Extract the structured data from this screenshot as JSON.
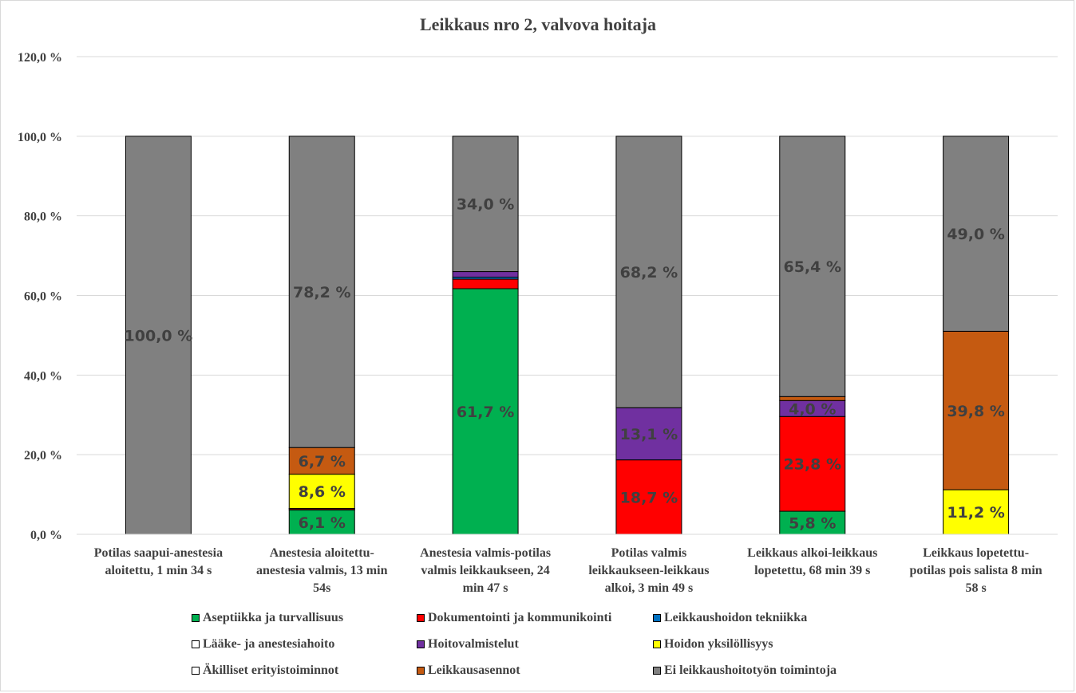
{
  "chart_data": {
    "type": "bar",
    "stacked": true,
    "title": "Leikkaus nro 2, valvova hoitaja",
    "ylim": [
      0,
      120
    ],
    "yticks": [
      "0,0 %",
      "20,0 %",
      "40,0 %",
      "60,0 %",
      "80,0 %",
      "100,0 %",
      "120,0 %"
    ],
    "ytick_values": [
      0,
      20,
      40,
      60,
      80,
      100,
      120
    ],
    "grid": true,
    "legend_position": "bottom",
    "categories": [
      [
        "Potilas saapui-anestesia",
        "aloitettu, 1 min 34 s"
      ],
      [
        "Anestesia aloitettu-",
        "anestesia valmis, 13 min",
        "54s"
      ],
      [
        "Anestesia valmis-potilas",
        "valmis leikkaukseen, 24",
        "min 47 s"
      ],
      [
        "Potilas valmis",
        "leikkaukseen-leikkaus",
        "alkoi, 3 min 49 s"
      ],
      [
        "Leikkaus alkoi-leikkaus",
        "lopetettu, 68 min 39 s"
      ],
      [
        "Leikkaus lopetettu-",
        "potilas pois salista 8 min",
        "58 s"
      ]
    ],
    "series": [
      {
        "name": "Aseptiikka ja turvallisuus",
        "color": "#00b050",
        "values": [
          0,
          6.1,
          61.7,
          0,
          5.8,
          0
        ],
        "labels": [
          "",
          "6,1 %",
          "61,7 %",
          "",
          "5,8 %",
          ""
        ]
      },
      {
        "name": "Dokumentointi ja kommunikointi",
        "color": "#ff0000",
        "values": [
          0,
          0.3,
          2.4,
          18.7,
          23.8,
          0
        ],
        "labels": [
          "",
          "",
          "",
          "18,7 %",
          "23,8 %",
          ""
        ]
      },
      {
        "name": "Leikkaushoidon tekniikka",
        "color": "#0070c0",
        "values": [
          0,
          0,
          0.5,
          0,
          0,
          0
        ],
        "labels": [
          "",
          "",
          "",
          "",
          "",
          ""
        ]
      },
      {
        "name": "Lääke- ja anestesiahoito",
        "color": "#ffffff",
        "values": [
          0,
          0,
          0,
          0,
          0,
          0
        ],
        "labels": [
          "",
          "",
          "",
          "",
          "",
          ""
        ]
      },
      {
        "name": "Hoitovalmistelut",
        "color": "#7030a0",
        "values": [
          0,
          0.1,
          1.4,
          13.1,
          4.0,
          0
        ],
        "labels": [
          "",
          "",
          "",
          "13,1 %",
          "4,0 %",
          ""
        ]
      },
      {
        "name": "Hoidon yksilöllisyys",
        "color": "#ffff00",
        "values": [
          0,
          8.6,
          0,
          0,
          0,
          11.2
        ],
        "labels": [
          "",
          "8,6 %",
          "",
          "",
          "",
          "11,2 %"
        ]
      },
      {
        "name": "Äkilliset erityistoiminnot",
        "color": "#ffffff",
        "values": [
          0,
          0,
          0,
          0,
          0,
          0
        ],
        "labels": [
          "",
          "",
          "",
          "",
          "",
          ""
        ]
      },
      {
        "name": "Leikkausasennot",
        "color": "#c55a11",
        "values": [
          0,
          6.7,
          0,
          0,
          1.0,
          39.8
        ],
        "labels": [
          "",
          "6,7 %",
          "",
          "",
          "",
          "39,8 %"
        ]
      },
      {
        "name": "Ei leikkaushoitotyön toimintoja",
        "color": "#808080",
        "values": [
          100.0,
          78.2,
          34.0,
          68.2,
          65.4,
          49.0
        ],
        "labels": [
          "100,0 %",
          "78,2 %",
          "34,0 %",
          "68,2 %",
          "65,4 %",
          "49,0 %"
        ]
      }
    ]
  }
}
